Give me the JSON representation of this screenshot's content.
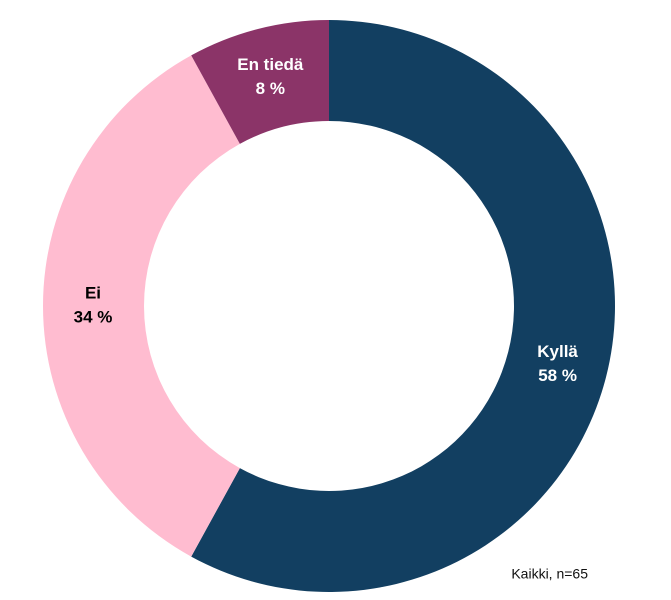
{
  "chart_data": {
    "type": "donut",
    "categories": [
      "Kyllä",
      "Ei",
      "En tiedä"
    ],
    "values": [
      58,
      34,
      8
    ],
    "value_labels": [
      "58 %",
      "34 %",
      "8 %"
    ],
    "colors": [
      "#123f61",
      "#ffbcd0",
      "#8b3468"
    ],
    "note": "Kaikki, n=65"
  }
}
